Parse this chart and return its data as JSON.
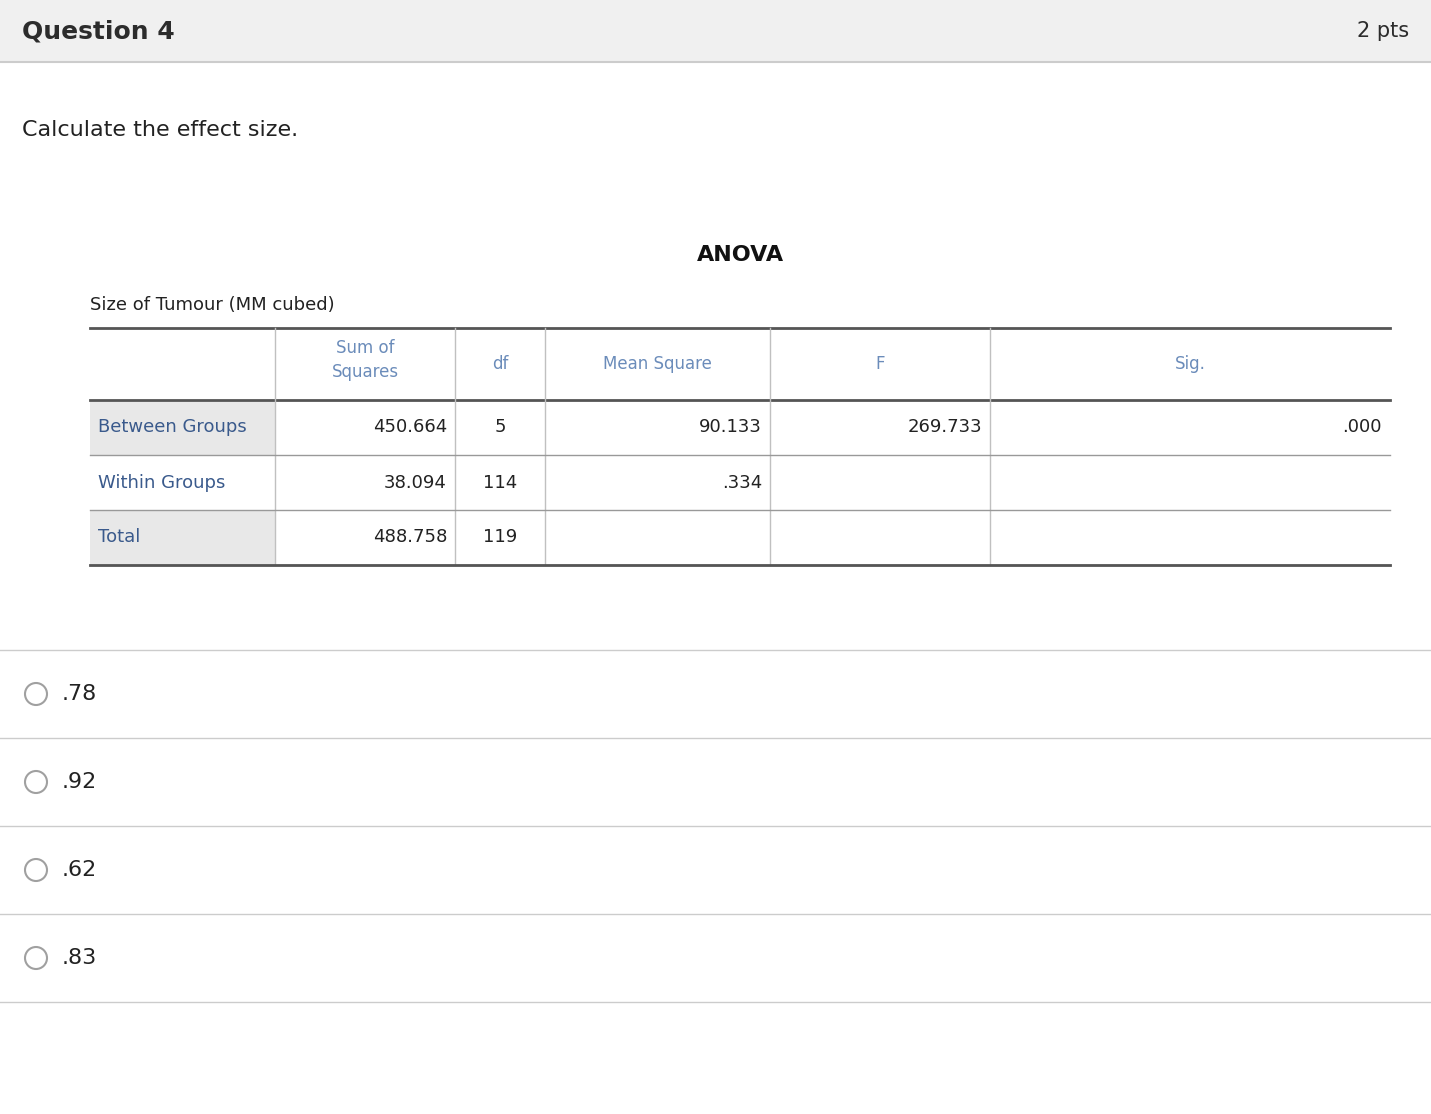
{
  "title": "Question 4",
  "pts": "2 pts",
  "question_text": "Calculate the effect size.",
  "table_title": "ANOVA",
  "table_subtitle": "Size of Tumour (MM cubed)",
  "bg_color": "#ffffff",
  "header_bg": "#f0f0f0",
  "header_text_color": "#6b8cba",
  "row_label_color": "#3a5a8c",
  "row_labels": [
    "Between Groups",
    "Within Groups",
    "Total"
  ],
  "row_label_bg": [
    "#e8e8e8",
    "#ffffff",
    "#e8e8e8"
  ],
  "table_data": [
    [
      "450.664",
      "5",
      "90.133",
      "269.733",
      ".000"
    ],
    [
      "38.094",
      "114",
      ".334",
      "",
      ""
    ],
    [
      "488.758",
      "119",
      "",
      "",
      ""
    ]
  ],
  "options": [
    ".78",
    ".92",
    ".62",
    ".83"
  ],
  "divider_color": "#cccccc",
  "table_line_color": "#999999",
  "table_thick_color": "#555555",
  "question_title_color": "#2c2c2c",
  "question_title_bg": "#f0f0f0"
}
